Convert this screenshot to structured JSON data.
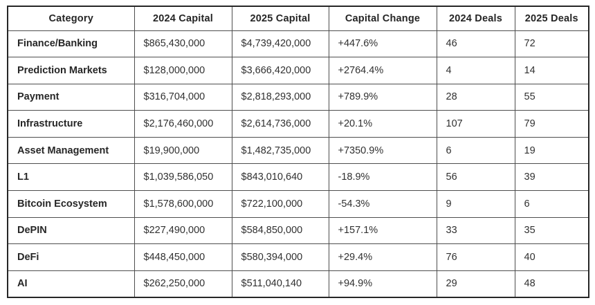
{
  "chart_data": {
    "type": "table",
    "columns": [
      "Category",
      "2024 Capital",
      "2025 Capital",
      "Capital Change",
      "2024 Deals",
      "2025 Deals"
    ],
    "rows": [
      [
        "Finance/Banking",
        "$865,430,000",
        "$4,739,420,000",
        "+447.6%",
        "46",
        "72"
      ],
      [
        "Prediction Markets",
        "$128,000,000",
        "$3,666,420,000",
        "+2764.4%",
        "4",
        "14"
      ],
      [
        "Payment",
        "$316,704,000",
        "$2,818,293,000",
        "+789.9%",
        "28",
        "55"
      ],
      [
        "Infrastructure",
        "$2,176,460,000",
        "$2,614,736,000",
        "+20.1%",
        "107",
        "79"
      ],
      [
        "Asset Management",
        "$19,900,000",
        "$1,482,735,000",
        "+7350.9%",
        "6",
        "19"
      ],
      [
        "L1",
        "$1,039,586,050",
        "$843,010,640",
        "-18.9%",
        "56",
        "39"
      ],
      [
        "Bitcoin Ecosystem",
        "$1,578,600,000",
        "$722,100,000",
        "-54.3%",
        "9",
        "6"
      ],
      [
        "DePIN",
        "$227,490,000",
        "$584,850,000",
        "+157.1%",
        "33",
        "35"
      ],
      [
        "DeFi",
        "$448,450,000",
        "$580,394,000",
        "+29.4%",
        "76",
        "40"
      ],
      [
        "AI",
        "$262,250,000",
        "$511,040,140",
        "+94.9%",
        "29",
        "48"
      ]
    ],
    "styles": {
      "border_outer_color": "#262626",
      "border_inner_color": "#4d4d4d",
      "text_color": "#303030",
      "background": "#ffffff"
    }
  }
}
